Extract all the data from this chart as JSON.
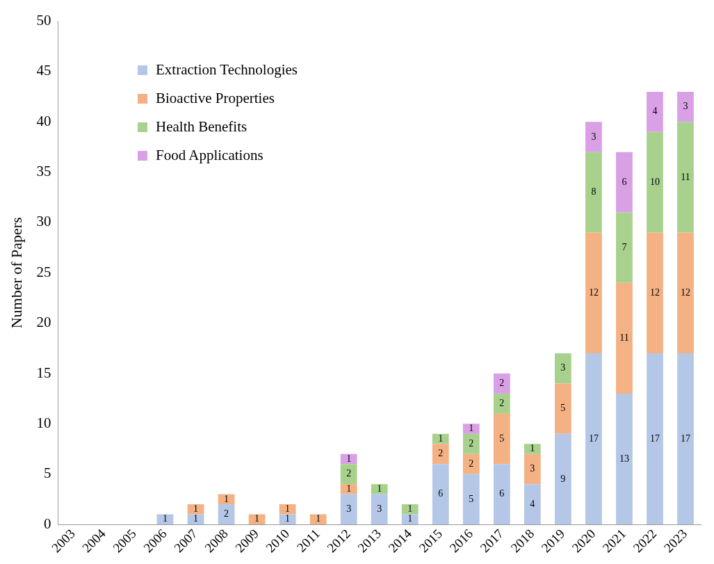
{
  "chart_data": {
    "type": "bar",
    "stacked": true,
    "ylabel": "Number of Papers",
    "categories": [
      "2003",
      "2004",
      "2005",
      "2006",
      "2007",
      "2008",
      "2009",
      "2010",
      "2011",
      "2012",
      "2013",
      "2014",
      "2015",
      "2016",
      "2017",
      "2018",
      "2019",
      "2020",
      "2021",
      "2022",
      "2023"
    ],
    "series": [
      {
        "name": "Extraction Technologies",
        "color": "#b4c7e7",
        "values": [
          0,
          0,
          0,
          1,
          1,
          2,
          0,
          1,
          0,
          3,
          3,
          1,
          6,
          5,
          6,
          4,
          9,
          17,
          13,
          17,
          17
        ],
        "value_labels": [
          null,
          null,
          null,
          "1",
          "1",
          "2",
          null,
          "1",
          null,
          "3",
          "3",
          "1",
          "6",
          "5",
          "6",
          "4",
          "9",
          "17",
          "13",
          "17",
          "17"
        ]
      },
      {
        "name": "Bioactive Properties",
        "color": "#f4b183",
        "values": [
          0,
          0,
          0,
          0,
          1,
          1,
          1,
          1,
          1,
          1,
          0,
          0,
          2,
          2,
          5,
          3,
          5,
          12,
          11,
          12,
          12
        ],
        "value_labels": [
          null,
          null,
          null,
          null,
          "1",
          "1",
          "1",
          "1",
          "1",
          "1",
          null,
          null,
          "2",
          "2",
          "5",
          "3",
          "5",
          "12",
          "11",
          "12",
          "12"
        ]
      },
      {
        "name": "Health Benefits",
        "color": "#a9d18e",
        "values": [
          0,
          0,
          0,
          0,
          0,
          0,
          0,
          0,
          0,
          2,
          1,
          1,
          1,
          2,
          2,
          1,
          3,
          8,
          7,
          10,
          11
        ],
        "value_labels": [
          null,
          null,
          null,
          null,
          null,
          null,
          null,
          null,
          null,
          "2",
          "1",
          "1",
          "1",
          "2",
          "2",
          "1",
          "3",
          "8",
          "7",
          "10",
          "11"
        ]
      },
      {
        "name": "Food Applications",
        "color": "#d9a0e6",
        "values": [
          0,
          0,
          0,
          0,
          0,
          0,
          0,
          0,
          0,
          1,
          0,
          0,
          0,
          1,
          2,
          0,
          0,
          3,
          6,
          4,
          3
        ],
        "value_labels": [
          null,
          null,
          null,
          null,
          null,
          null,
          null,
          null,
          null,
          "1",
          null,
          null,
          null,
          "1",
          "2",
          null,
          null,
          "3",
          "6",
          "4",
          "3"
        ]
      }
    ],
    "ylim": [
      0,
      50
    ],
    "yticks": [
      0,
      5,
      10,
      15,
      20,
      25,
      30,
      35,
      40,
      45,
      50
    ],
    "grid": false,
    "legend": "top left"
  }
}
